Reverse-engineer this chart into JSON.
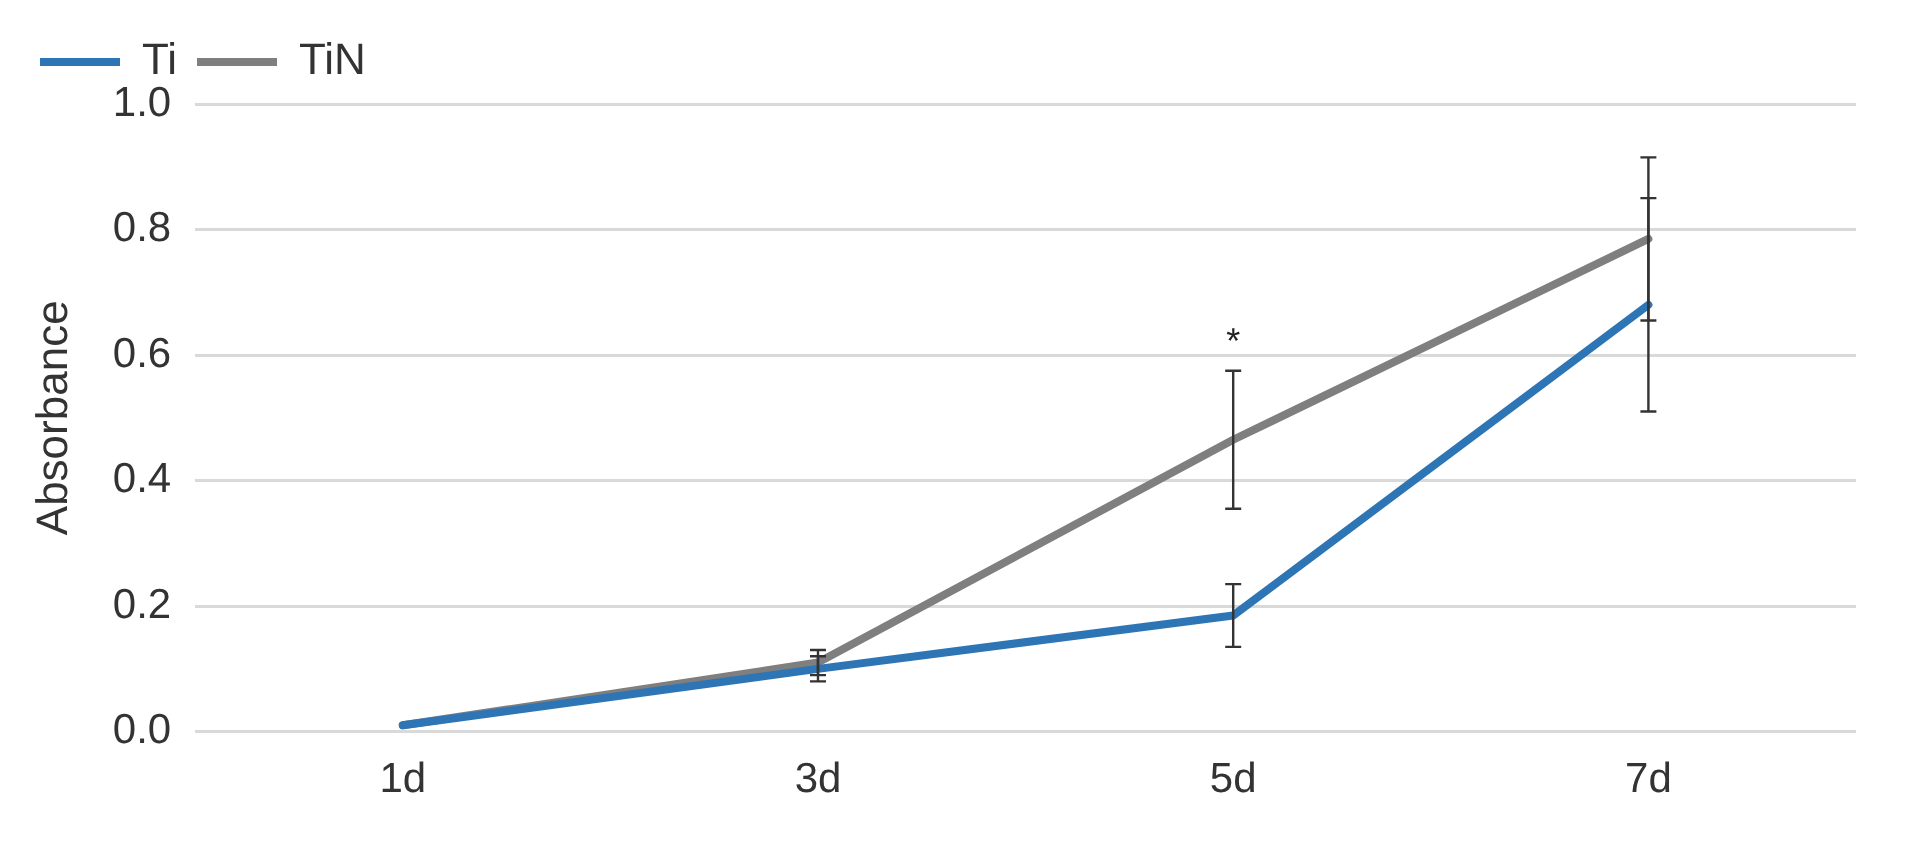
{
  "chart_data": {
    "type": "line",
    "ylabel": "Absorbance",
    "categories": [
      "1d",
      "3d",
      "5d",
      "7d"
    ],
    "series": [
      {
        "name": "Ti",
        "color": "#2e75b6",
        "values": [
          0.01,
          0.1,
          0.185,
          0.68
        ],
        "errors": [
          null,
          0.02,
          0.05,
          0.17
        ]
      },
      {
        "name": "TiN",
        "color": "#7f7f7f",
        "values": [
          0.01,
          0.11,
          0.465,
          0.785
        ],
        "errors": [
          null,
          0.02,
          0.11,
          0.13
        ]
      }
    ],
    "ylim": [
      0,
      1
    ],
    "yticks": [
      {
        "value": 0,
        "label": "0.0"
      },
      {
        "value": 0.2,
        "label": "0.2"
      },
      {
        "value": 0.4,
        "label": "0.4"
      },
      {
        "value": 0.6,
        "label": "0.6"
      },
      {
        "value": 0.8,
        "label": "0.8"
      },
      {
        "value": 1,
        "label": "1.0"
      }
    ],
    "grid": "y",
    "legend": "top left",
    "marker": "none",
    "line_style": "solid",
    "annotations": [
      "*"
    ]
  }
}
